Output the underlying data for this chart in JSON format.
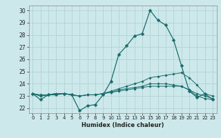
{
  "title": "",
  "xlabel": "Humidex (Indice chaleur)",
  "ylabel": "",
  "bg_color": "#cce8ea",
  "grid_color": "#aacfd2",
  "line_color": "#1a6b6b",
  "xlim": [
    -0.5,
    23.5
  ],
  "ylim": [
    21.6,
    30.4
  ],
  "yticks": [
    22,
    23,
    24,
    25,
    26,
    27,
    28,
    29,
    30
  ],
  "xticks": [
    0,
    1,
    2,
    3,
    4,
    5,
    6,
    7,
    8,
    9,
    10,
    11,
    12,
    13,
    14,
    15,
    16,
    17,
    18,
    19,
    20,
    21,
    22,
    23
  ],
  "series": [
    [
      23.2,
      22.7,
      23.1,
      23.1,
      23.2,
      23.1,
      21.8,
      22.2,
      22.3,
      23.1,
      24.2,
      26.4,
      27.1,
      27.9,
      28.1,
      30.0,
      29.2,
      28.8,
      27.6,
      25.5,
      23.4,
      22.9,
      23.2,
      22.7
    ],
    [
      23.2,
      23.1,
      23.1,
      23.2,
      23.2,
      23.1,
      23.0,
      23.1,
      23.1,
      23.2,
      23.4,
      23.6,
      23.8,
      24.0,
      24.2,
      24.5,
      24.6,
      24.7,
      24.8,
      24.9,
      24.5,
      23.9,
      23.2,
      23.0
    ],
    [
      23.2,
      23.0,
      23.1,
      23.2,
      23.2,
      23.1,
      23.0,
      23.1,
      23.1,
      23.2,
      23.3,
      23.4,
      23.5,
      23.6,
      23.7,
      23.8,
      23.8,
      23.8,
      23.8,
      23.8,
      23.5,
      23.2,
      23.0,
      22.8
    ],
    [
      23.2,
      23.0,
      23.1,
      23.2,
      23.2,
      23.1,
      23.0,
      23.1,
      23.1,
      23.2,
      23.3,
      23.5,
      23.6,
      23.7,
      23.8,
      24.0,
      24.0,
      24.0,
      23.9,
      23.8,
      23.5,
      23.0,
      22.8,
      22.7
    ]
  ]
}
